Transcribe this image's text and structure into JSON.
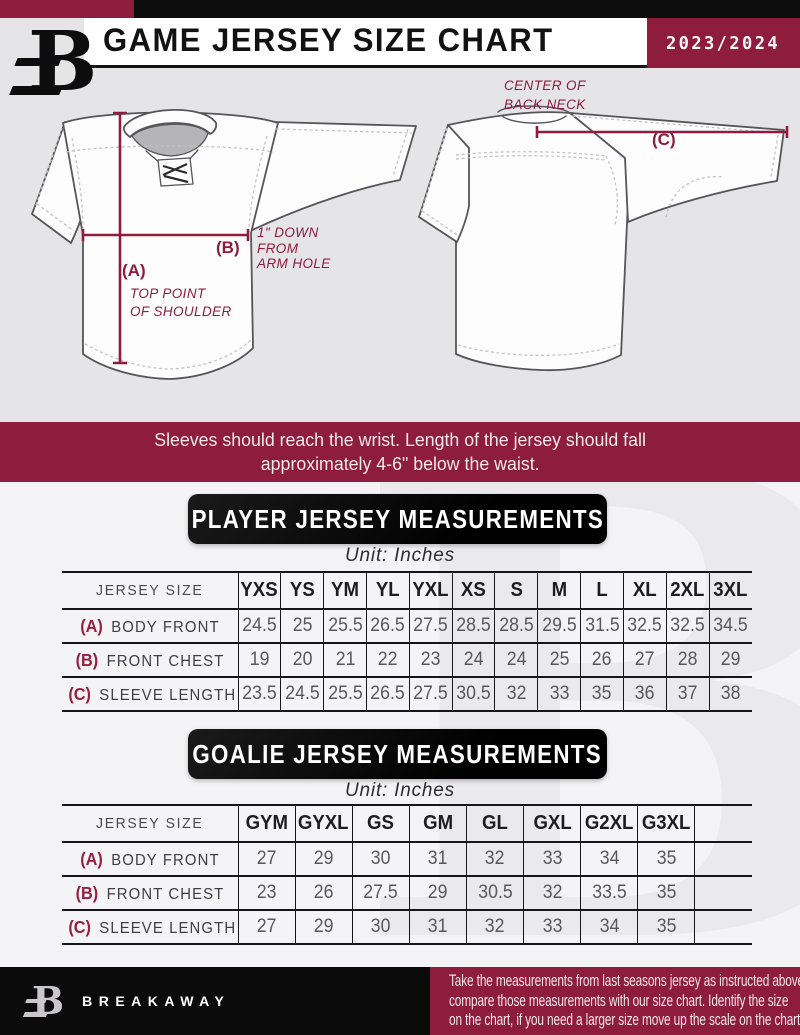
{
  "header": {
    "title": "GAME JERSEY SIZE CHART",
    "season": "2023/2024",
    "logo_letter": "B"
  },
  "diagrams": {
    "front": {
      "a_key": "(A)",
      "a_caption_lines": [
        "TOP POINT",
        "OF SHOULDER"
      ],
      "b_key": "(B)",
      "b_caption_lines": [
        "1\" DOWN",
        "FROM",
        "ARM HOLE"
      ]
    },
    "back": {
      "c_key": "(C)",
      "c_caption_lines": [
        "CENTER OF",
        "BACK NECK"
      ]
    }
  },
  "fit_note": {
    "lines": [
      "Sleeves should reach the wrist. Length of the jersey should fall",
      "approximately 4-6\" below the waist."
    ]
  },
  "player_section": {
    "title": "PLAYER JERSEY MEASUREMENTS",
    "unit": "Unit: Inches",
    "table": {
      "corner_label": "JERSEY SIZE",
      "sizes": [
        "YXS",
        "YS",
        "YM",
        "YL",
        "YXL",
        "XS",
        "S",
        "M",
        "L",
        "XL",
        "2XL",
        "3XL"
      ],
      "rows": [
        {
          "key": "(A)",
          "label": "BODY FRONT",
          "values": [
            "24.5",
            "25",
            "25.5",
            "26.5",
            "27.5",
            "28.5",
            "28.5",
            "29.5",
            "31.5",
            "32.5",
            "32.5",
            "34.5"
          ]
        },
        {
          "key": "(B)",
          "label": "FRONT CHEST",
          "values": [
            "19",
            "20",
            "21",
            "22",
            "23",
            "24",
            "24",
            "25",
            "26",
            "27",
            "28",
            "29"
          ]
        },
        {
          "key": "(C)",
          "label": "SLEEVE LENGTH",
          "values": [
            "23.5",
            "24.5",
            "25.5",
            "26.5",
            "27.5",
            "30.5",
            "32",
            "33",
            "35",
            "36",
            "37",
            "38"
          ]
        }
      ]
    }
  },
  "goalie_section": {
    "title": "GOALIE JERSEY MEASUREMENTS",
    "unit": "Unit: Inches",
    "table": {
      "corner_label": "JERSEY SIZE",
      "sizes": [
        "GYM",
        "GYXL",
        "GS",
        "GM",
        "GL",
        "GXL",
        "G2XL",
        "G3XL",
        ""
      ],
      "rows": [
        {
          "key": "(A)",
          "label": "BODY FRONT",
          "values": [
            "27",
            "29",
            "30",
            "31",
            "32",
            "33",
            "34",
            "35",
            ""
          ]
        },
        {
          "key": "(B)",
          "label": "FRONT CHEST",
          "values": [
            "23",
            "26",
            "27.5",
            "29",
            "30.5",
            "32",
            "33.5",
            "35",
            ""
          ]
        },
        {
          "key": "(C)",
          "label": "SLEEVE LENGTH",
          "values": [
            "27",
            "29",
            "30",
            "31",
            "32",
            "33",
            "34",
            "35",
            ""
          ]
        }
      ]
    }
  },
  "footer": {
    "brand": "BREAKAWAY",
    "logo_letter": "B",
    "note_lines": [
      "Take the measurements from last seasons jersey as instructed above",
      "compare those measurements  with our size chart. Identify the size",
      "on the chart, if you need a larger size move up the scale on the chart"
    ]
  },
  "watermark_letter": "B",
  "colors": {
    "maroon": "#8E1C3C",
    "black": "#0C0C0C",
    "top_background": "#E5E4E7",
    "bottom_background": "#F4F3F5"
  }
}
